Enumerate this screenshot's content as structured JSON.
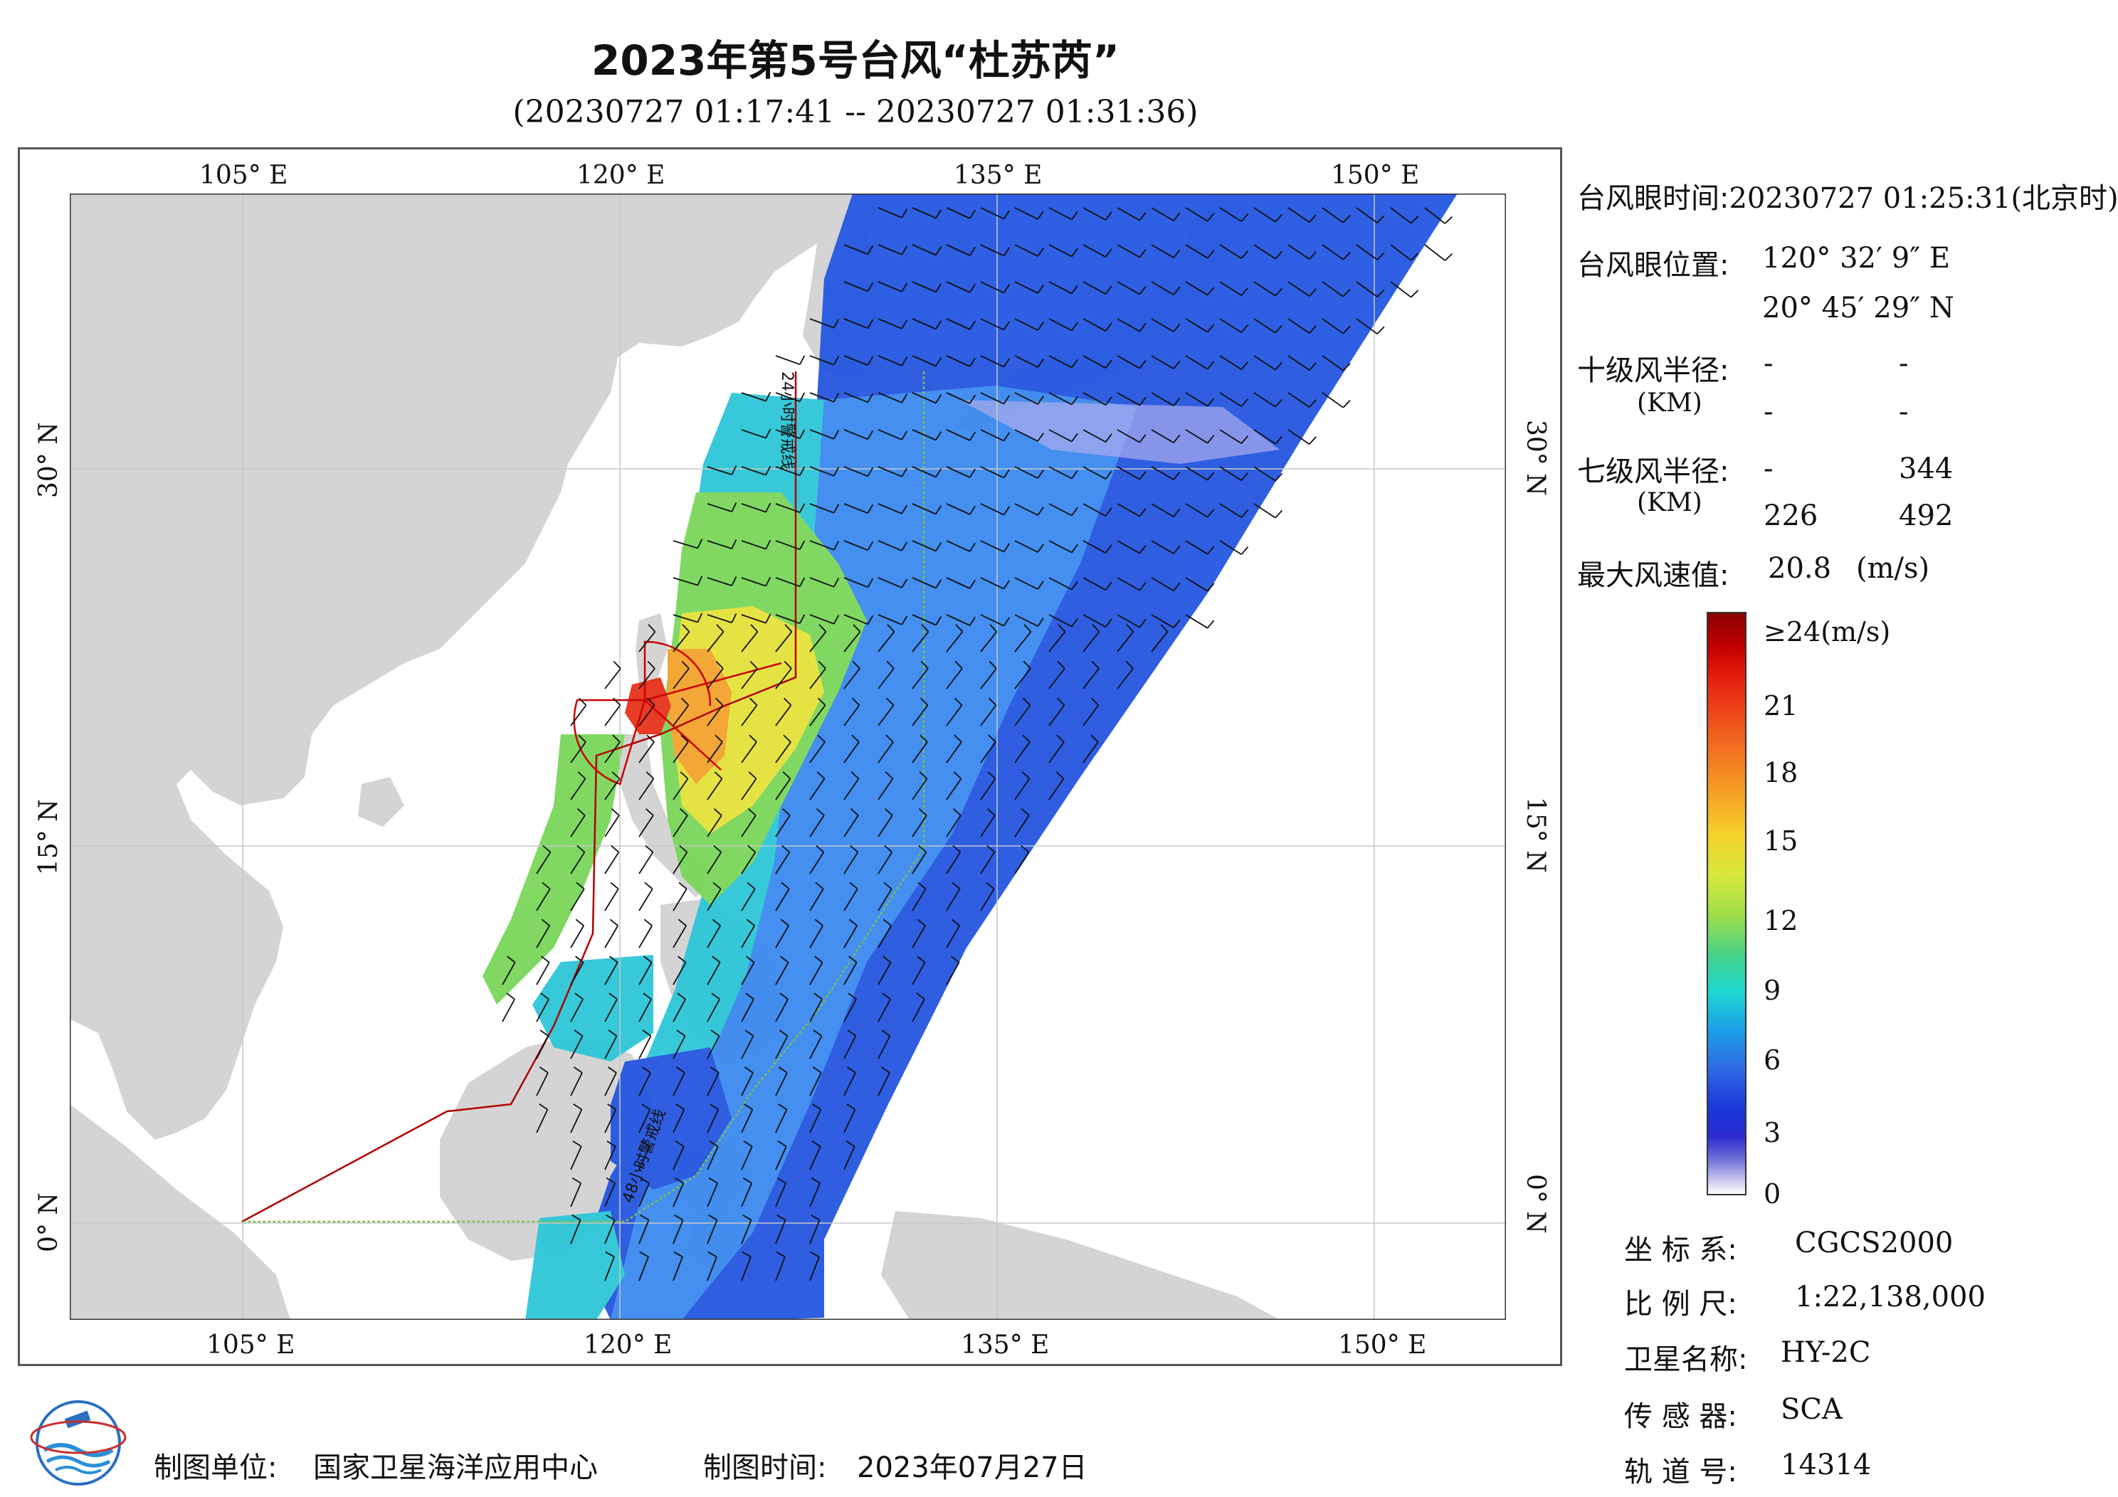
{
  "title": "2023年第5号台风“杜苏芮”",
  "subtitle": "(20230727 01:17:41 -- 20230727 01:31:36)",
  "map": {
    "lon_ticks": [
      "105° E",
      "120° E",
      "135° E",
      "150° E"
    ],
    "lat_ticks": [
      "30° N",
      "15° N",
      "0° N"
    ],
    "line_labels": [
      "24小时警戒线",
      "48小时警戒线"
    ],
    "colors": {
      "land": "#d4d4d4",
      "sea": "#ffffff",
      "warning_line": "#b00000",
      "grid": "#cccccc"
    }
  },
  "info": {
    "eye_time_label": "台风眼时间:",
    "eye_time_value": "20230727 01:25:31(北京时)",
    "eye_pos_label": "台风眼位置:",
    "eye_lon": "120° 32′ 9″ E",
    "eye_lat": "20° 45′ 29″ N",
    "r10_label": "十级风半径:",
    "r10_unit": "(KM)",
    "r10_values": [
      "-",
      "-",
      "-",
      "-"
    ],
    "r7_label": "七级风半径:",
    "r7_unit": "(KM)",
    "r7_values": [
      "-",
      "344",
      "226",
      "492"
    ],
    "max_wind_label": "最大风速值:",
    "max_wind_value": "20.8",
    "max_wind_unit": "(m/s)"
  },
  "colorbar": {
    "labels": [
      "≥24(m/s)",
      "21",
      "18",
      "15",
      "12",
      "9",
      "6",
      "3",
      "0"
    ],
    "range": [
      0,
      24
    ]
  },
  "meta": {
    "crs_label": "坐 标 系:",
    "crs_value": "CGCS2000",
    "scale_label": "比 例 尺:",
    "scale_value": "1:22,138,000",
    "satellite_label": "卫星名称:",
    "satellite_value": "HY-2C",
    "sensor_label": "传 感 器:",
    "sensor_value": "SCA",
    "orbit_label": "轨 道 号:",
    "orbit_value": "14314"
  },
  "footer": {
    "org_label": "制图单位:",
    "org_value": "国家卫星海洋应用中心",
    "date_label": "制图时间:",
    "date_value": "2023年07月27日"
  }
}
